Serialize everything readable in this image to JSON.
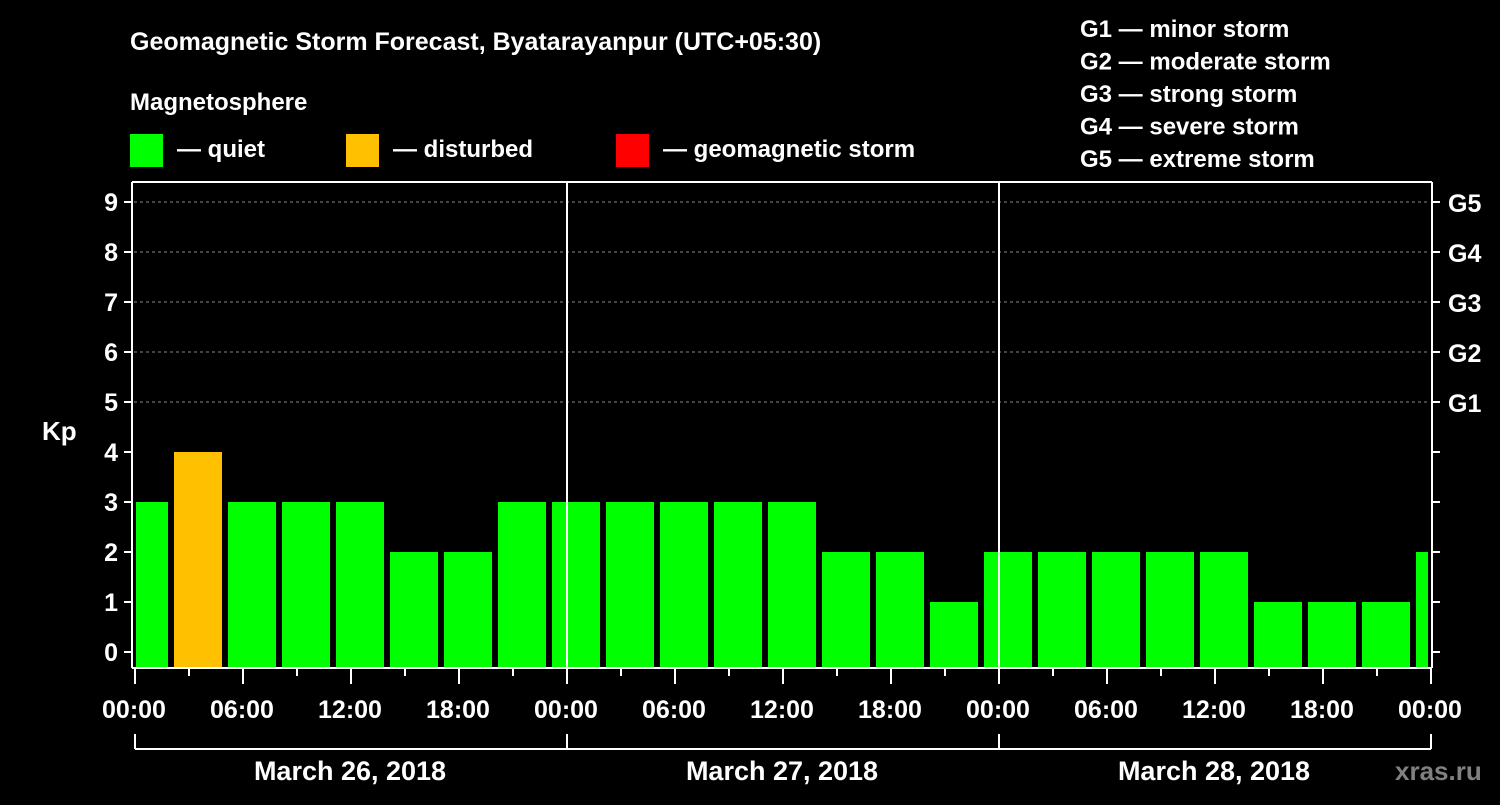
{
  "chart_data": {
    "type": "bar",
    "title": "Geomagnetic Storm Forecast, Byatarayanpur (UTC+05:30)",
    "ylabel": "Kp",
    "ylim": [
      0,
      9
    ],
    "yticks": [
      "0",
      "1",
      "2",
      "3",
      "4",
      "5",
      "6",
      "7",
      "8",
      "9"
    ],
    "right_ticks": [
      {
        "kp": 5,
        "label": "G1"
      },
      {
        "kp": 6,
        "label": "G2"
      },
      {
        "kp": 7,
        "label": "G3"
      },
      {
        "kp": 8,
        "label": "G4"
      },
      {
        "kp": 9,
        "label": "G5"
      }
    ],
    "xlim_hours": [
      0,
      72
    ],
    "xtick_labels": [
      "00:00",
      "06:00",
      "12:00",
      "18:00",
      "00:00",
      "06:00",
      "12:00",
      "18:00",
      "00:00",
      "06:00",
      "12:00",
      "18:00",
      "00:00"
    ],
    "days": [
      "March 26, 2018",
      "March 27, 2018",
      "March 28, 2018"
    ],
    "bar_interval_hours": 3,
    "bar_start_hours": [
      -1,
      2,
      5,
      8,
      11,
      14,
      17,
      20,
      23,
      26,
      29,
      32,
      35,
      38,
      41,
      44,
      47,
      50,
      53,
      56,
      59,
      62,
      65,
      68,
      71
    ],
    "values": [
      3,
      4,
      3,
      3,
      3,
      2,
      2,
      3,
      3,
      3,
      3,
      3,
      3,
      2,
      2,
      1,
      2,
      2,
      2,
      2,
      2,
      1,
      1,
      1,
      2
    ],
    "grid": "dashed horizontal",
    "legend": {
      "heading": "Magnetosphere",
      "items": [
        {
          "label": "— quiet",
          "color": "#00ff00"
        },
        {
          "label": "— disturbed",
          "color": "#ffc000"
        },
        {
          "label": "— geomagnetic storm",
          "color": "#ff0000"
        }
      ]
    },
    "storm_scale": [
      "G1 — minor storm",
      "G2 — moderate storm",
      "G3 — strong storm",
      "G4 — severe storm",
      "G5 — extreme storm"
    ],
    "thresholds": {
      "disturbed": 4,
      "storm": 5
    }
  },
  "watermark": "xras.ru"
}
